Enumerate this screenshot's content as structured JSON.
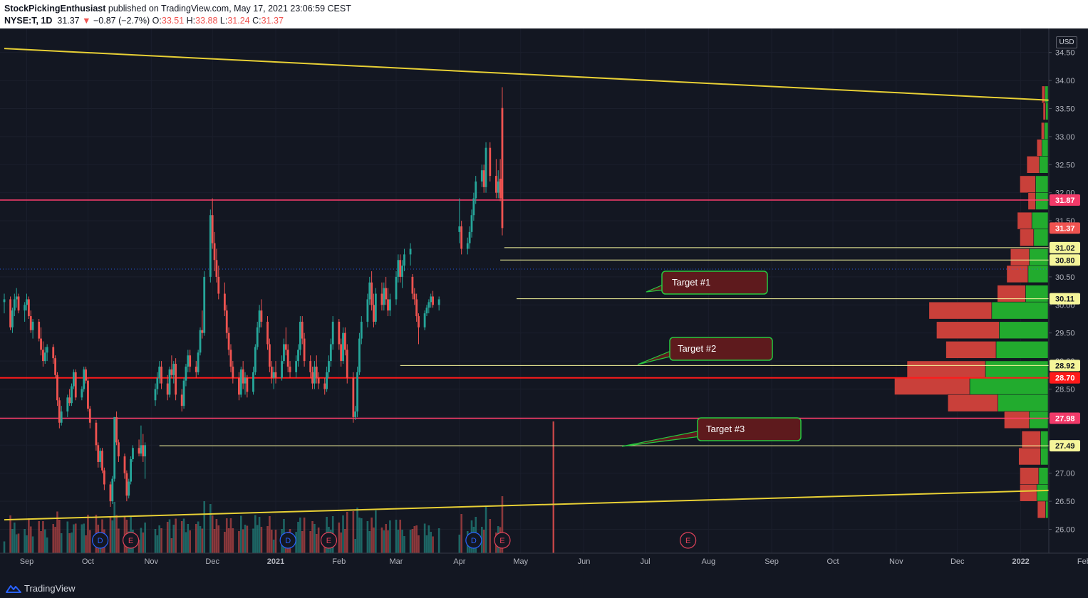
{
  "header": {
    "author": "StockPickingEnthusiast",
    "published": "published on TradingView.com, May 17, 2021 23:06:59 CEST",
    "symbol": "NYSE:T, 1D",
    "last": "31.37",
    "change": "−0.87 (−2.7%)",
    "open_label": "O:",
    "open": "33.51",
    "high_label": "H:",
    "high": "33.88",
    "low_label": "L:",
    "low": "31.24",
    "close_label": "C:",
    "close": "31.37"
  },
  "currency": "USD",
  "brand": "TradingView",
  "colors": {
    "background": "#131722",
    "up": "#26a69a",
    "down": "#ef5350",
    "trendline": "#e8d035",
    "resistance": "#ff3f6c",
    "support_red": "#ff1a1a",
    "target_line": "#f5f59a",
    "target_box_fill": "#5e1a1d",
    "target_box_border": "#27c93f",
    "vp_green": "#22ab2e",
    "vp_red": "#c9403a"
  },
  "chart_data": {
    "type": "candlestick",
    "title": "",
    "xlabel": "",
    "ylabel": "",
    "ylim": [
      25.6,
      34.6
    ],
    "x_ticks": [
      "Sep",
      "Oct",
      "Nov",
      "Dec",
      "2021",
      "Feb",
      "Mar",
      "Apr",
      "May",
      "Jun",
      "Jul",
      "Aug",
      "Sep",
      "Oct",
      "Nov",
      "Dec",
      "2022",
      "Feb"
    ],
    "y_ticks": [
      "26.00",
      "26.50",
      "27.00",
      "27.50",
      "28.00",
      "28.50",
      "29.00",
      "29.50",
      "30.00",
      "30.50",
      "31.00",
      "31.50",
      "32.00",
      "32.50",
      "33.00",
      "33.50",
      "34.00",
      "34.50"
    ],
    "price_labels": [
      {
        "value": 31.87,
        "label": "31.87",
        "kind": "resistance"
      },
      {
        "value": 31.37,
        "label": "31.37",
        "kind": "last"
      },
      {
        "value": 31.02,
        "label": "31.02",
        "kind": "target"
      },
      {
        "value": 30.8,
        "label": "30.80",
        "kind": "target"
      },
      {
        "value": 30.11,
        "label": "30.11",
        "kind": "target"
      },
      {
        "value": 28.92,
        "label": "28.92",
        "kind": "target"
      },
      {
        "value": 28.7,
        "label": "28.70",
        "kind": "support"
      },
      {
        "value": 27.98,
        "label": "27.98",
        "kind": "resistance"
      },
      {
        "value": 27.49,
        "label": "27.49",
        "kind": "target"
      }
    ],
    "annotations": [
      "Target #1",
      "Target #2",
      "Target #3"
    ],
    "events": [
      {
        "label": "D",
        "type": "dividend",
        "date": "2020-10-07"
      },
      {
        "label": "E",
        "type": "earnings",
        "date": "2020-10-22"
      },
      {
        "label": "D",
        "type": "dividend",
        "date": "2021-01-07"
      },
      {
        "label": "E",
        "type": "earnings",
        "date": "2021-01-27"
      },
      {
        "label": "D",
        "type": "dividend",
        "date": "2021-04-08"
      },
      {
        "label": "E",
        "type": "earnings",
        "date": "2021-04-22"
      },
      {
        "label": "E",
        "type": "earnings",
        "date": "2021-07-22"
      }
    ],
    "trendlines": [
      {
        "name": "upper",
        "from": {
          "date": "2020-08-21",
          "price": 34.57
        },
        "to": {
          "date": "2022-01-31",
          "price": 33.62
        }
      },
      {
        "name": "lower",
        "from": {
          "date": "2020-08-21",
          "price": 26.17
        },
        "to": {
          "date": "2022-01-31",
          "price": 26.71
        }
      }
    ],
    "candles": [
      [
        30.05,
        30.2,
        29.85,
        30.1
      ],
      [
        30.1,
        30.15,
        29.55,
        29.6
      ],
      [
        29.6,
        29.95,
        29.5,
        29.9
      ],
      [
        29.9,
        30.2,
        29.8,
        30.1
      ],
      [
        30.1,
        30.3,
        29.95,
        30.15
      ],
      [
        30.15,
        30.2,
        29.85,
        29.9
      ],
      [
        29.9,
        30.05,
        29.7,
        30.0
      ],
      [
        30.0,
        30.2,
        29.9,
        30.1
      ],
      [
        30.1,
        30.15,
        29.75,
        29.8
      ],
      [
        29.8,
        29.9,
        29.5,
        29.55
      ],
      [
        29.55,
        29.75,
        29.4,
        29.7
      ],
      [
        29.7,
        29.75,
        29.35,
        29.4
      ],
      [
        29.4,
        29.6,
        29.1,
        29.2
      ],
      [
        29.2,
        29.35,
        28.9,
        29.0
      ],
      [
        29.0,
        29.25,
        28.95,
        29.15
      ],
      [
        29.15,
        29.3,
        29.0,
        29.25
      ],
      [
        29.25,
        29.3,
        28.95,
        29.05
      ],
      [
        29.05,
        29.1,
        28.7,
        28.75
      ],
      [
        28.75,
        28.8,
        28.2,
        28.3
      ],
      [
        28.3,
        28.35,
        27.8,
        27.9
      ],
      [
        27.9,
        28.2,
        27.85,
        28.1
      ],
      [
        28.1,
        28.4,
        28.0,
        28.35
      ],
      [
        28.35,
        28.5,
        28.2,
        28.25
      ],
      [
        28.25,
        28.6,
        28.2,
        28.55
      ],
      [
        28.55,
        28.85,
        28.5,
        28.8
      ],
      [
        28.8,
        28.85,
        28.3,
        28.35
      ],
      [
        28.35,
        28.55,
        28.3,
        28.5
      ],
      [
        28.5,
        28.9,
        28.45,
        28.85
      ],
      [
        28.85,
        28.9,
        28.6,
        28.65
      ],
      [
        28.65,
        28.7,
        28.1,
        28.15
      ],
      [
        28.15,
        28.2,
        27.8,
        27.9
      ],
      [
        27.9,
        27.95,
        27.4,
        27.5
      ],
      [
        27.5,
        27.55,
        27.1,
        27.2
      ],
      [
        27.2,
        27.45,
        27.1,
        27.4
      ],
      [
        27.4,
        27.45,
        27.0,
        27.05
      ],
      [
        27.05,
        27.1,
        26.7,
        26.8
      ],
      [
        26.8,
        26.85,
        26.4,
        26.5
      ],
      [
        26.5,
        26.95,
        26.45,
        26.9
      ],
      [
        26.9,
        28.0,
        26.85,
        28.0
      ],
      [
        28.0,
        28.1,
        27.5,
        27.55
      ],
      [
        27.55,
        27.6,
        27.2,
        27.3
      ],
      [
        27.3,
        27.35,
        26.9,
        27.0
      ],
      [
        27.0,
        27.05,
        26.5,
        26.6
      ],
      [
        26.6,
        26.9,
        26.55,
        26.85
      ],
      [
        26.85,
        27.3,
        26.8,
        27.25
      ],
      [
        27.25,
        27.5,
        27.2,
        27.45
      ],
      [
        27.45,
        27.6,
        27.3,
        27.35
      ],
      [
        27.35,
        27.85,
        27.3,
        27.5
      ],
      [
        27.5,
        27.7,
        27.2,
        27.3
      ],
      [
        27.3,
        27.55,
        26.9,
        27.5
      ],
      [
        28.3,
        28.6,
        28.2,
        28.5
      ],
      [
        28.5,
        28.8,
        28.4,
        28.7
      ],
      [
        28.7,
        29.0,
        28.6,
        28.9
      ],
      [
        28.9,
        29.0,
        28.5,
        28.6
      ],
      [
        28.6,
        28.75,
        28.3,
        28.4
      ],
      [
        28.4,
        28.9,
        28.35,
        28.85
      ],
      [
        28.85,
        29.1,
        28.7,
        28.75
      ],
      [
        28.75,
        29.0,
        28.6,
        28.95
      ],
      [
        28.95,
        29.05,
        28.3,
        28.4
      ],
      [
        28.4,
        28.5,
        28.1,
        28.2
      ],
      [
        28.2,
        28.7,
        28.15,
        28.65
      ],
      [
        28.65,
        28.95,
        28.55,
        28.9
      ],
      [
        28.9,
        29.2,
        28.8,
        29.1
      ],
      [
        29.1,
        29.2,
        28.8,
        28.9
      ],
      [
        28.9,
        29.0,
        28.7,
        28.8
      ],
      [
        28.8,
        29.2,
        28.75,
        29.15
      ],
      [
        29.15,
        29.6,
        29.1,
        29.55
      ],
      [
        29.55,
        29.9,
        29.4,
        29.5
      ],
      [
        29.5,
        30.6,
        29.45,
        30.5
      ],
      [
        30.5,
        31.7,
        30.4,
        31.6
      ],
      [
        31.6,
        31.9,
        31.0,
        31.1
      ],
      [
        31.1,
        31.3,
        30.6,
        30.8
      ],
      [
        30.8,
        31.0,
        30.4,
        30.5
      ],
      [
        30.5,
        30.7,
        30.1,
        30.2
      ],
      [
        30.2,
        30.4,
        29.8,
        29.9
      ],
      [
        29.9,
        30.0,
        29.4,
        29.5
      ],
      [
        29.5,
        29.6,
        29.1,
        29.2
      ],
      [
        29.2,
        29.3,
        28.8,
        28.9
      ],
      [
        28.9,
        29.0,
        28.6,
        28.7
      ],
      [
        28.7,
        28.8,
        28.3,
        28.4
      ],
      [
        28.4,
        28.9,
        28.35,
        28.85
      ],
      [
        28.85,
        29.0,
        28.5,
        28.6
      ],
      [
        28.6,
        28.8,
        28.4,
        28.7
      ],
      [
        28.7,
        28.75,
        28.35,
        28.45
      ],
      [
        28.45,
        28.9,
        28.4,
        28.8
      ],
      [
        28.8,
        29.3,
        28.75,
        29.25
      ],
      [
        29.25,
        29.7,
        29.2,
        29.6
      ],
      [
        29.6,
        30.0,
        29.5,
        29.9
      ],
      [
        29.9,
        30.1,
        29.6,
        29.7
      ],
      [
        29.7,
        29.8,
        29.2,
        29.3
      ],
      [
        29.3,
        29.4,
        28.8,
        28.9
      ],
      [
        28.9,
        29.0,
        28.6,
        28.7
      ],
      [
        28.7,
        28.9,
        28.5,
        28.8
      ],
      [
        28.8,
        29.0,
        28.6,
        28.7
      ],
      [
        28.7,
        29.1,
        28.65,
        29.0
      ],
      [
        29.0,
        29.4,
        28.95,
        29.3
      ],
      [
        29.3,
        29.6,
        29.1,
        29.2
      ],
      [
        29.2,
        29.3,
        28.8,
        28.9
      ],
      [
        28.9,
        29.0,
        28.7,
        28.8
      ],
      [
        28.8,
        29.1,
        28.7,
        29.0
      ],
      [
        29.0,
        29.3,
        28.9,
        29.2
      ],
      [
        29.2,
        29.8,
        29.1,
        29.7
      ],
      [
        29.7,
        29.8,
        29.3,
        29.4
      ],
      [
        29.4,
        29.5,
        28.9,
        29.0
      ],
      [
        29.0,
        29.1,
        28.7,
        28.8
      ],
      [
        28.8,
        28.9,
        28.5,
        28.6
      ],
      [
        28.6,
        29.0,
        28.5,
        28.9
      ],
      [
        28.9,
        29.1,
        28.6,
        28.7
      ],
      [
        28.7,
        28.8,
        28.5,
        28.6
      ],
      [
        28.6,
        28.7,
        28.4,
        28.5
      ],
      [
        28.5,
        28.9,
        28.45,
        28.8
      ],
      [
        28.8,
        29.1,
        28.7,
        29.0
      ],
      [
        29.0,
        29.4,
        28.9,
        29.3
      ],
      [
        29.3,
        29.8,
        29.2,
        29.7
      ],
      [
        29.7,
        29.75,
        29.2,
        29.3
      ],
      [
        29.3,
        29.4,
        28.9,
        29.0
      ],
      [
        29.0,
        29.6,
        28.95,
        29.5
      ],
      [
        29.5,
        29.6,
        29.1,
        29.2
      ],
      [
        29.2,
        29.3,
        28.6,
        28.7
      ],
      [
        28.7,
        28.8,
        27.9,
        28.0
      ],
      [
        28.0,
        28.2,
        27.95,
        28.1
      ],
      [
        28.1,
        28.9,
        28.0,
        28.8
      ],
      [
        28.8,
        29.5,
        28.75,
        29.4
      ],
      [
        29.4,
        29.8,
        29.3,
        29.7
      ],
      [
        29.7,
        30.2,
        29.6,
        30.1
      ],
      [
        30.1,
        30.5,
        30.0,
        30.4
      ],
      [
        30.4,
        30.6,
        29.9,
        30.0
      ],
      [
        30.0,
        30.2,
        29.6,
        29.7
      ],
      [
        29.7,
        30.3,
        29.65,
        30.2
      ],
      [
        30.2,
        30.4,
        29.9,
        30.0
      ],
      [
        30.0,
        30.4,
        29.9,
        30.3
      ],
      [
        30.3,
        30.5,
        30.0,
        30.1
      ],
      [
        30.1,
        30.3,
        29.8,
        29.9
      ],
      [
        29.9,
        30.2,
        29.8,
        30.1
      ],
      [
        30.1,
        30.6,
        30.0,
        30.5
      ],
      [
        30.5,
        30.9,
        30.4,
        30.8
      ],
      [
        30.8,
        30.9,
        30.4,
        30.5
      ],
      [
        30.5,
        30.8,
        30.3,
        30.7
      ],
      [
        30.7,
        31.0,
        30.6,
        30.9
      ],
      [
        30.9,
        31.1,
        30.7,
        31.0
      ],
      [
        30.5,
        30.55,
        30.1,
        30.2
      ],
      [
        30.2,
        30.3,
        30.0,
        30.1
      ],
      [
        30.1,
        30.2,
        29.7,
        29.8
      ],
      [
        29.8,
        29.85,
        29.3,
        29.6
      ],
      [
        29.6,
        29.9,
        29.55,
        29.85
      ],
      [
        29.85,
        30.0,
        29.8,
        29.95
      ],
      [
        29.95,
        30.1,
        29.85,
        30.05
      ],
      [
        30.05,
        30.2,
        29.95,
        30.15
      ],
      [
        30.15,
        30.25,
        29.95,
        30.0
      ],
      [
        30.0,
        30.15,
        29.9,
        30.1
      ],
      [
        31.3,
        31.9,
        31.1,
        31.4
      ],
      [
        31.4,
        31.5,
        30.9,
        31.0
      ],
      [
        31.0,
        31.2,
        30.9,
        31.1
      ],
      [
        31.1,
        31.4,
        31.0,
        31.3
      ],
      [
        31.3,
        31.7,
        31.2,
        31.6
      ],
      [
        31.6,
        32.0,
        31.5,
        31.9
      ],
      [
        31.9,
        32.3,
        31.8,
        32.2
      ],
      [
        32.2,
        32.5,
        32.1,
        32.4
      ],
      [
        32.4,
        32.5,
        32.0,
        32.1
      ],
      [
        32.1,
        32.9,
        32.0,
        32.8
      ],
      [
        32.8,
        32.9,
        32.2,
        32.3
      ],
      [
        32.3,
        32.6,
        31.9,
        32.0
      ],
      [
        32.0,
        32.4,
        31.9,
        32.2
      ],
      [
        32.25,
        32.6,
        31.85,
        31.9
      ],
      [
        33.51,
        33.88,
        31.24,
        31.37
      ]
    ],
    "volume_profile": [
      {
        "price": 33.75,
        "up": 0.05,
        "down": 0.05
      },
      {
        "price": 33.45,
        "up": 0.04,
        "down": 0.04
      },
      {
        "price": 33.1,
        "up": 0.06,
        "down": 0.05
      },
      {
        "price": 32.8,
        "up": 0.1,
        "down": 0.08
      },
      {
        "price": 32.5,
        "up": 0.14,
        "down": 0.2
      },
      {
        "price": 32.15,
        "up": 0.2,
        "down": 0.25
      },
      {
        "price": 31.85,
        "up": 0.2,
        "down": 0.12
      },
      {
        "price": 31.5,
        "up": 0.26,
        "down": 0.23
      },
      {
        "price": 31.2,
        "up": 0.23,
        "down": 0.22
      },
      {
        "price": 30.85,
        "up": 0.3,
        "down": 0.3
      },
      {
        "price": 30.55,
        "up": 0.32,
        "down": 0.34
      },
      {
        "price": 30.2,
        "up": 0.36,
        "down": 0.45
      },
      {
        "price": 29.9,
        "up": 0.9,
        "down": 1.0
      },
      {
        "price": 29.55,
        "up": 0.78,
        "down": 1.0
      },
      {
        "price": 29.2,
        "up": 0.83,
        "down": 0.8
      },
      {
        "price": 28.85,
        "up": 1.0,
        "down": 1.25
      },
      {
        "price": 28.55,
        "up": 1.25,
        "down": 1.2
      },
      {
        "price": 28.25,
        "up": 0.8,
        "down": 0.8
      },
      {
        "price": 27.95,
        "up": 0.3,
        "down": 0.4
      },
      {
        "price": 27.6,
        "up": 0.12,
        "down": 0.3
      },
      {
        "price": 27.3,
        "up": 0.12,
        "down": 0.35
      },
      {
        "price": 26.95,
        "up": 0.15,
        "down": 0.3
      },
      {
        "price": 26.65,
        "up": 0.18,
        "down": 0.27
      },
      {
        "price": 26.35,
        "up": 0.04,
        "down": 0.13
      }
    ]
  }
}
